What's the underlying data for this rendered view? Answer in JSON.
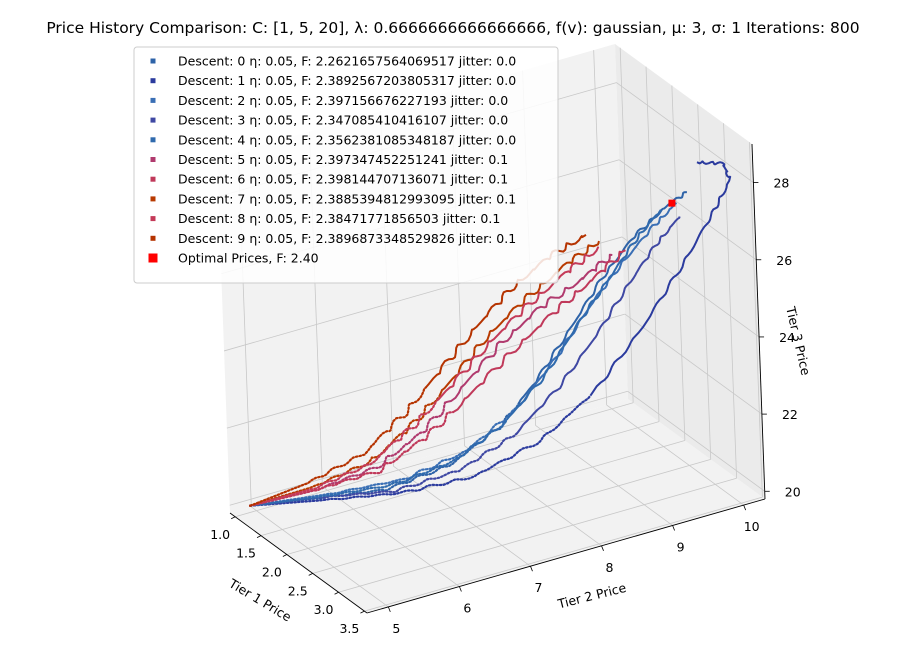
{
  "chart_data": {
    "type": "line",
    "title": "Price History Comparison: C: [1, 5, 20], λ: 0.6666666666666666, f(v): gaussian, μ: 3, σ: 1 Iterations: 800",
    "xlabel": "Tier 1 Price",
    "ylabel": "Tier 2 Price",
    "zlabel": "Tier 3 Price",
    "xlim": [
      0.9,
      3.55
    ],
    "ylim": [
      4.7,
      10.3
    ],
    "zlim": [
      19.8,
      29.0
    ],
    "x_ticks": [
      "1.0",
      "1.5",
      "2.0",
      "2.5",
      "3.0",
      "3.5"
    ],
    "y_ticks": [
      "5",
      "6",
      "7",
      "8",
      "9",
      "10"
    ],
    "z_ticks": [
      "20",
      "22",
      "24",
      "26",
      "28"
    ],
    "grid": true,
    "legend_position": "top-left",
    "series": [
      {
        "name": "Descent: 0 η: 0.05, F: 2.2621657564069517 jitter: 0.0",
        "color": "#2e63a8",
        "jitter": 0.0,
        "points": [
          [
            1.02,
            4.9,
            20.0
          ],
          [
            1.4,
            5.6,
            20.2
          ],
          [
            1.9,
            6.2,
            20.6
          ],
          [
            2.3,
            6.8,
            21.3
          ],
          [
            2.6,
            7.3,
            22.3
          ],
          [
            2.8,
            7.7,
            23.5
          ],
          [
            2.95,
            8.1,
            24.8
          ],
          [
            3.05,
            8.5,
            26.0
          ],
          [
            3.12,
            8.9,
            26.9
          ],
          [
            3.18,
            9.3,
            27.5
          ],
          [
            3.22,
            9.6,
            27.8
          ]
        ]
      },
      {
        "name": "Descent: 1 η: 0.05, F: 2.3892567203805317 jitter: 0.0",
        "color": "#2b3b9e",
        "jitter": 0.0,
        "points": [
          [
            1.02,
            4.9,
            20.0
          ],
          [
            1.4,
            5.7,
            20.1
          ],
          [
            1.9,
            6.4,
            20.4
          ],
          [
            2.35,
            7.1,
            20.9
          ],
          [
            2.7,
            7.8,
            21.8
          ],
          [
            2.95,
            8.4,
            23.0
          ],
          [
            3.1,
            9.0,
            24.5
          ],
          [
            3.2,
            9.5,
            25.9
          ],
          [
            3.27,
            9.9,
            27.1
          ],
          [
            3.3,
            10.15,
            27.9
          ],
          [
            3.32,
            10.05,
            28.4
          ],
          [
            3.3,
            9.7,
            28.6
          ]
        ]
      },
      {
        "name": "Descent: 2 η: 0.05, F: 2.397156676227193 jitter: 0.0",
        "color": "#3a6fb5",
        "jitter": 0.0,
        "points": [
          [
            1.02,
            4.9,
            20.0
          ],
          [
            1.45,
            5.7,
            20.3
          ],
          [
            1.95,
            6.4,
            20.8
          ],
          [
            2.35,
            7.0,
            21.6
          ],
          [
            2.65,
            7.5,
            22.7
          ],
          [
            2.85,
            7.95,
            24.0
          ],
          [
            3.0,
            8.35,
            25.3
          ],
          [
            3.1,
            8.75,
            26.3
          ],
          [
            3.17,
            9.15,
            27.1
          ],
          [
            3.22,
            9.45,
            27.6
          ]
        ]
      },
      {
        "name": "Descent: 3 η: 0.05, F: 2.347085410416107 jitter: 0.0",
        "color": "#3f48a3",
        "jitter": 0.0,
        "points": [
          [
            1.02,
            4.9,
            20.0
          ],
          [
            1.4,
            5.65,
            20.2
          ],
          [
            1.9,
            6.3,
            20.5
          ],
          [
            2.3,
            6.95,
            21.1
          ],
          [
            2.6,
            7.5,
            22.0
          ],
          [
            2.82,
            8.0,
            23.2
          ],
          [
            2.98,
            8.45,
            24.5
          ],
          [
            3.08,
            8.85,
            25.7
          ],
          [
            3.15,
            9.2,
            26.6
          ],
          [
            3.2,
            9.5,
            27.2
          ]
        ]
      },
      {
        "name": "Descent: 4 η: 0.05, F: 2.3562381085348187 jitter: 0.0",
        "color": "#2f6aad",
        "jitter": 0.0,
        "points": [
          [
            1.02,
            4.9,
            20.0
          ],
          [
            1.42,
            5.6,
            20.25
          ],
          [
            1.92,
            6.25,
            20.7
          ],
          [
            2.32,
            6.85,
            21.4
          ],
          [
            2.62,
            7.35,
            22.4
          ],
          [
            2.83,
            7.8,
            23.6
          ],
          [
            2.97,
            8.2,
            24.9
          ],
          [
            3.07,
            8.6,
            26.0
          ],
          [
            3.14,
            8.95,
            26.9
          ],
          [
            3.19,
            9.25,
            27.5
          ]
        ]
      },
      {
        "name": "Descent: 5 η: 0.05, F: 2.397347452251241 jitter: 0.1",
        "color": "#b03a6e",
        "jitter": 0.1,
        "points": [
          [
            1.02,
            4.9,
            20.0
          ],
          [
            1.45,
            5.5,
            20.5
          ],
          [
            1.95,
            6.0,
            21.3
          ],
          [
            2.35,
            6.4,
            22.4
          ],
          [
            2.6,
            6.8,
            23.6
          ],
          [
            2.78,
            7.25,
            24.7
          ],
          [
            2.92,
            7.7,
            25.5
          ],
          [
            3.05,
            8.2,
            26.1
          ],
          [
            3.12,
            8.6,
            26.6
          ]
        ]
      },
      {
        "name": "Descent: 6 η: 0.05, F: 2.398144707136071 jitter: 0.1",
        "color": "#c0395a",
        "jitter": 0.1,
        "points": [
          [
            1.02,
            4.9,
            20.0
          ],
          [
            1.45,
            5.55,
            20.5
          ],
          [
            1.95,
            6.05,
            21.2
          ],
          [
            2.3,
            6.5,
            22.2
          ],
          [
            2.55,
            6.95,
            23.3
          ],
          [
            2.75,
            7.45,
            24.4
          ],
          [
            2.9,
            7.95,
            25.3
          ],
          [
            3.02,
            8.4,
            26.0
          ],
          [
            3.1,
            8.8,
            26.6
          ]
        ]
      },
      {
        "name": "Descent: 7 η: 0.05, F: 2.3885394812993095 jitter: 0.1",
        "color": "#b83a00",
        "jitter": 0.1,
        "points": [
          [
            1.02,
            4.9,
            20.0
          ],
          [
            1.45,
            5.5,
            20.6
          ],
          [
            1.95,
            5.95,
            21.5
          ],
          [
            2.3,
            6.3,
            22.6
          ],
          [
            2.55,
            6.7,
            23.8
          ],
          [
            2.72,
            7.1,
            24.9
          ],
          [
            2.88,
            7.55,
            25.8
          ],
          [
            3.0,
            8.0,
            26.5
          ],
          [
            3.08,
            8.45,
            27.0
          ]
        ]
      },
      {
        "name": "Descent: 8 η: 0.05, F: 2.38471771856503 jitter: 0.1",
        "color": "#c43a58",
        "jitter": 0.1,
        "points": [
          [
            1.02,
            4.9,
            20.0
          ],
          [
            1.45,
            5.5,
            20.55
          ],
          [
            1.92,
            5.95,
            21.4
          ],
          [
            2.28,
            6.3,
            22.5
          ],
          [
            2.52,
            6.7,
            23.6
          ],
          [
            2.7,
            7.15,
            24.7
          ],
          [
            2.86,
            7.6,
            25.6
          ],
          [
            2.98,
            8.05,
            26.3
          ],
          [
            3.06,
            8.45,
            26.8
          ]
        ]
      },
      {
        "name": "Descent: 9 η: 0.05, F: 2.3896873348529826 jitter: 0.1",
        "color": "#b53300",
        "jitter": 0.1,
        "points": [
          [
            1.02,
            4.9,
            20.0
          ],
          [
            1.42,
            5.45,
            20.7
          ],
          [
            1.9,
            5.9,
            21.7
          ],
          [
            2.25,
            6.25,
            22.9
          ],
          [
            2.5,
            6.6,
            24.1
          ],
          [
            2.68,
            7.0,
            25.2
          ],
          [
            2.82,
            7.4,
            26.1
          ],
          [
            2.95,
            7.85,
            26.8
          ],
          [
            3.04,
            8.3,
            27.2
          ]
        ]
      }
    ],
    "optimal": {
      "name": "Optimal Prices, F: 2.40",
      "color": "#ff0000",
      "point": [
        3.2,
        9.4,
        27.6
      ]
    }
  }
}
